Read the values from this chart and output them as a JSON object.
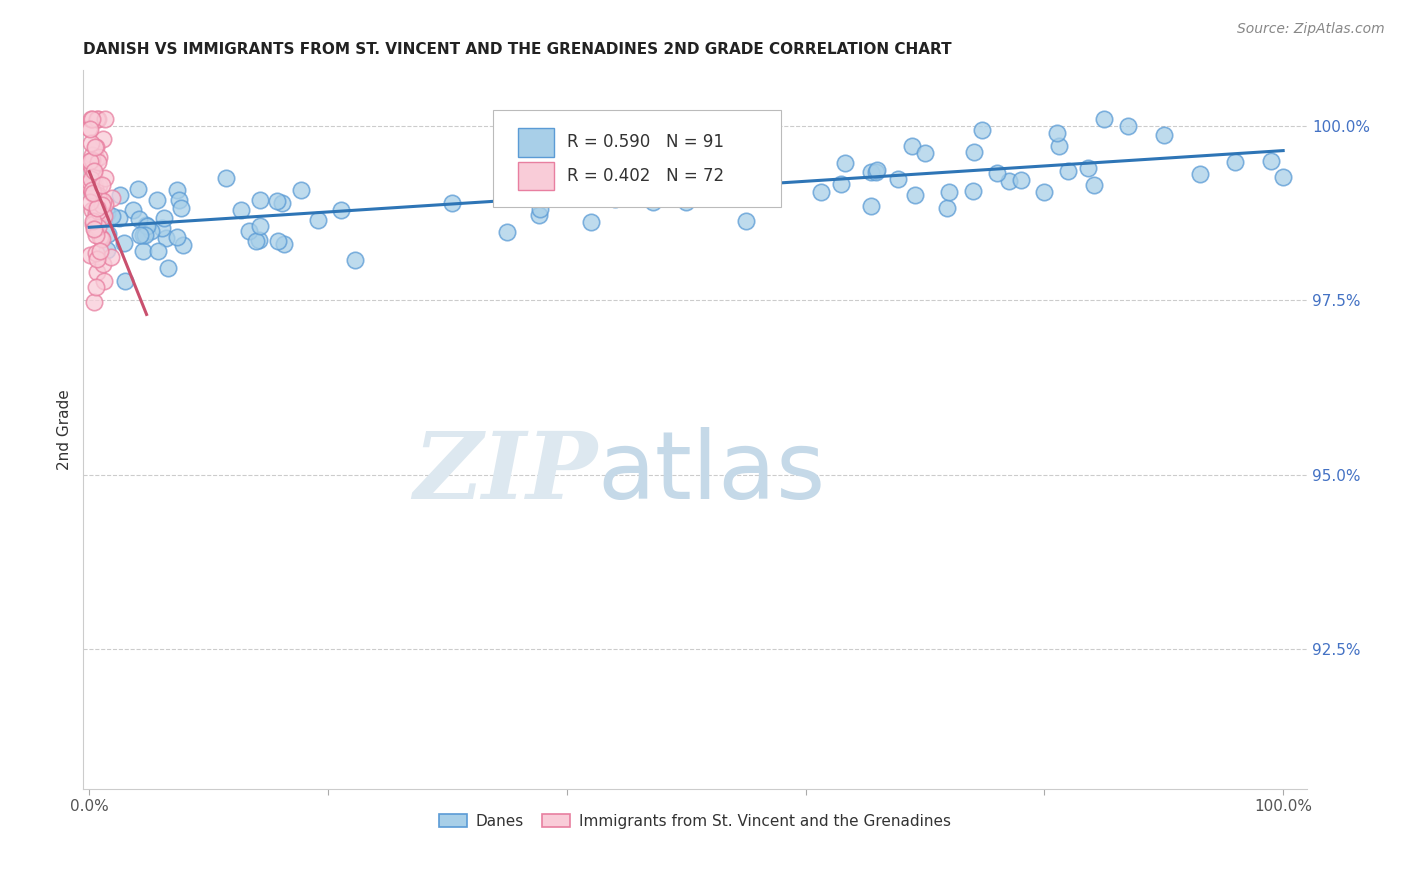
{
  "title": "DANISH VS IMMIGRANTS FROM ST. VINCENT AND THE GRENADINES 2ND GRADE CORRELATION CHART",
  "source": "Source: ZipAtlas.com",
  "ylabel": "2nd Grade",
  "y_tick_labels": [
    "100.0%",
    "97.5%",
    "95.0%",
    "92.5%"
  ],
  "y_tick_values": [
    1.0,
    0.975,
    0.95,
    0.925
  ],
  "x_range": [
    -0.005,
    1.02
  ],
  "y_range": [
    0.905,
    1.008
  ],
  "legend_blue_r": "R = 0.590",
  "legend_blue_n": "N = 91",
  "legend_pink_r": "R = 0.402",
  "legend_pink_n": "N = 72",
  "legend_blue_label": "Danes",
  "legend_pink_label": "Immigrants from St. Vincent and the Grenadines",
  "watermark_zip": "ZIP",
  "watermark_atlas": "atlas",
  "blue_color": "#a8cfe8",
  "blue_edge_color": "#5b9bd5",
  "pink_color": "#f9ccd8",
  "pink_edge_color": "#e87fa0",
  "blue_line_color": "#2e75b6",
  "pink_line_color": "#c9506e",
  "blue_trend_x0": 0.0,
  "blue_trend_x1": 1.0,
  "blue_trend_y0": 0.9855,
  "blue_trend_y1": 0.9965,
  "pink_trend_x0": 0.0,
  "pink_trend_x1": 0.048,
  "pink_trend_y0": 0.9935,
  "pink_trend_y1": 0.973,
  "title_fontsize": 11,
  "source_fontsize": 10,
  "tick_fontsize": 11,
  "ylabel_fontsize": 11
}
